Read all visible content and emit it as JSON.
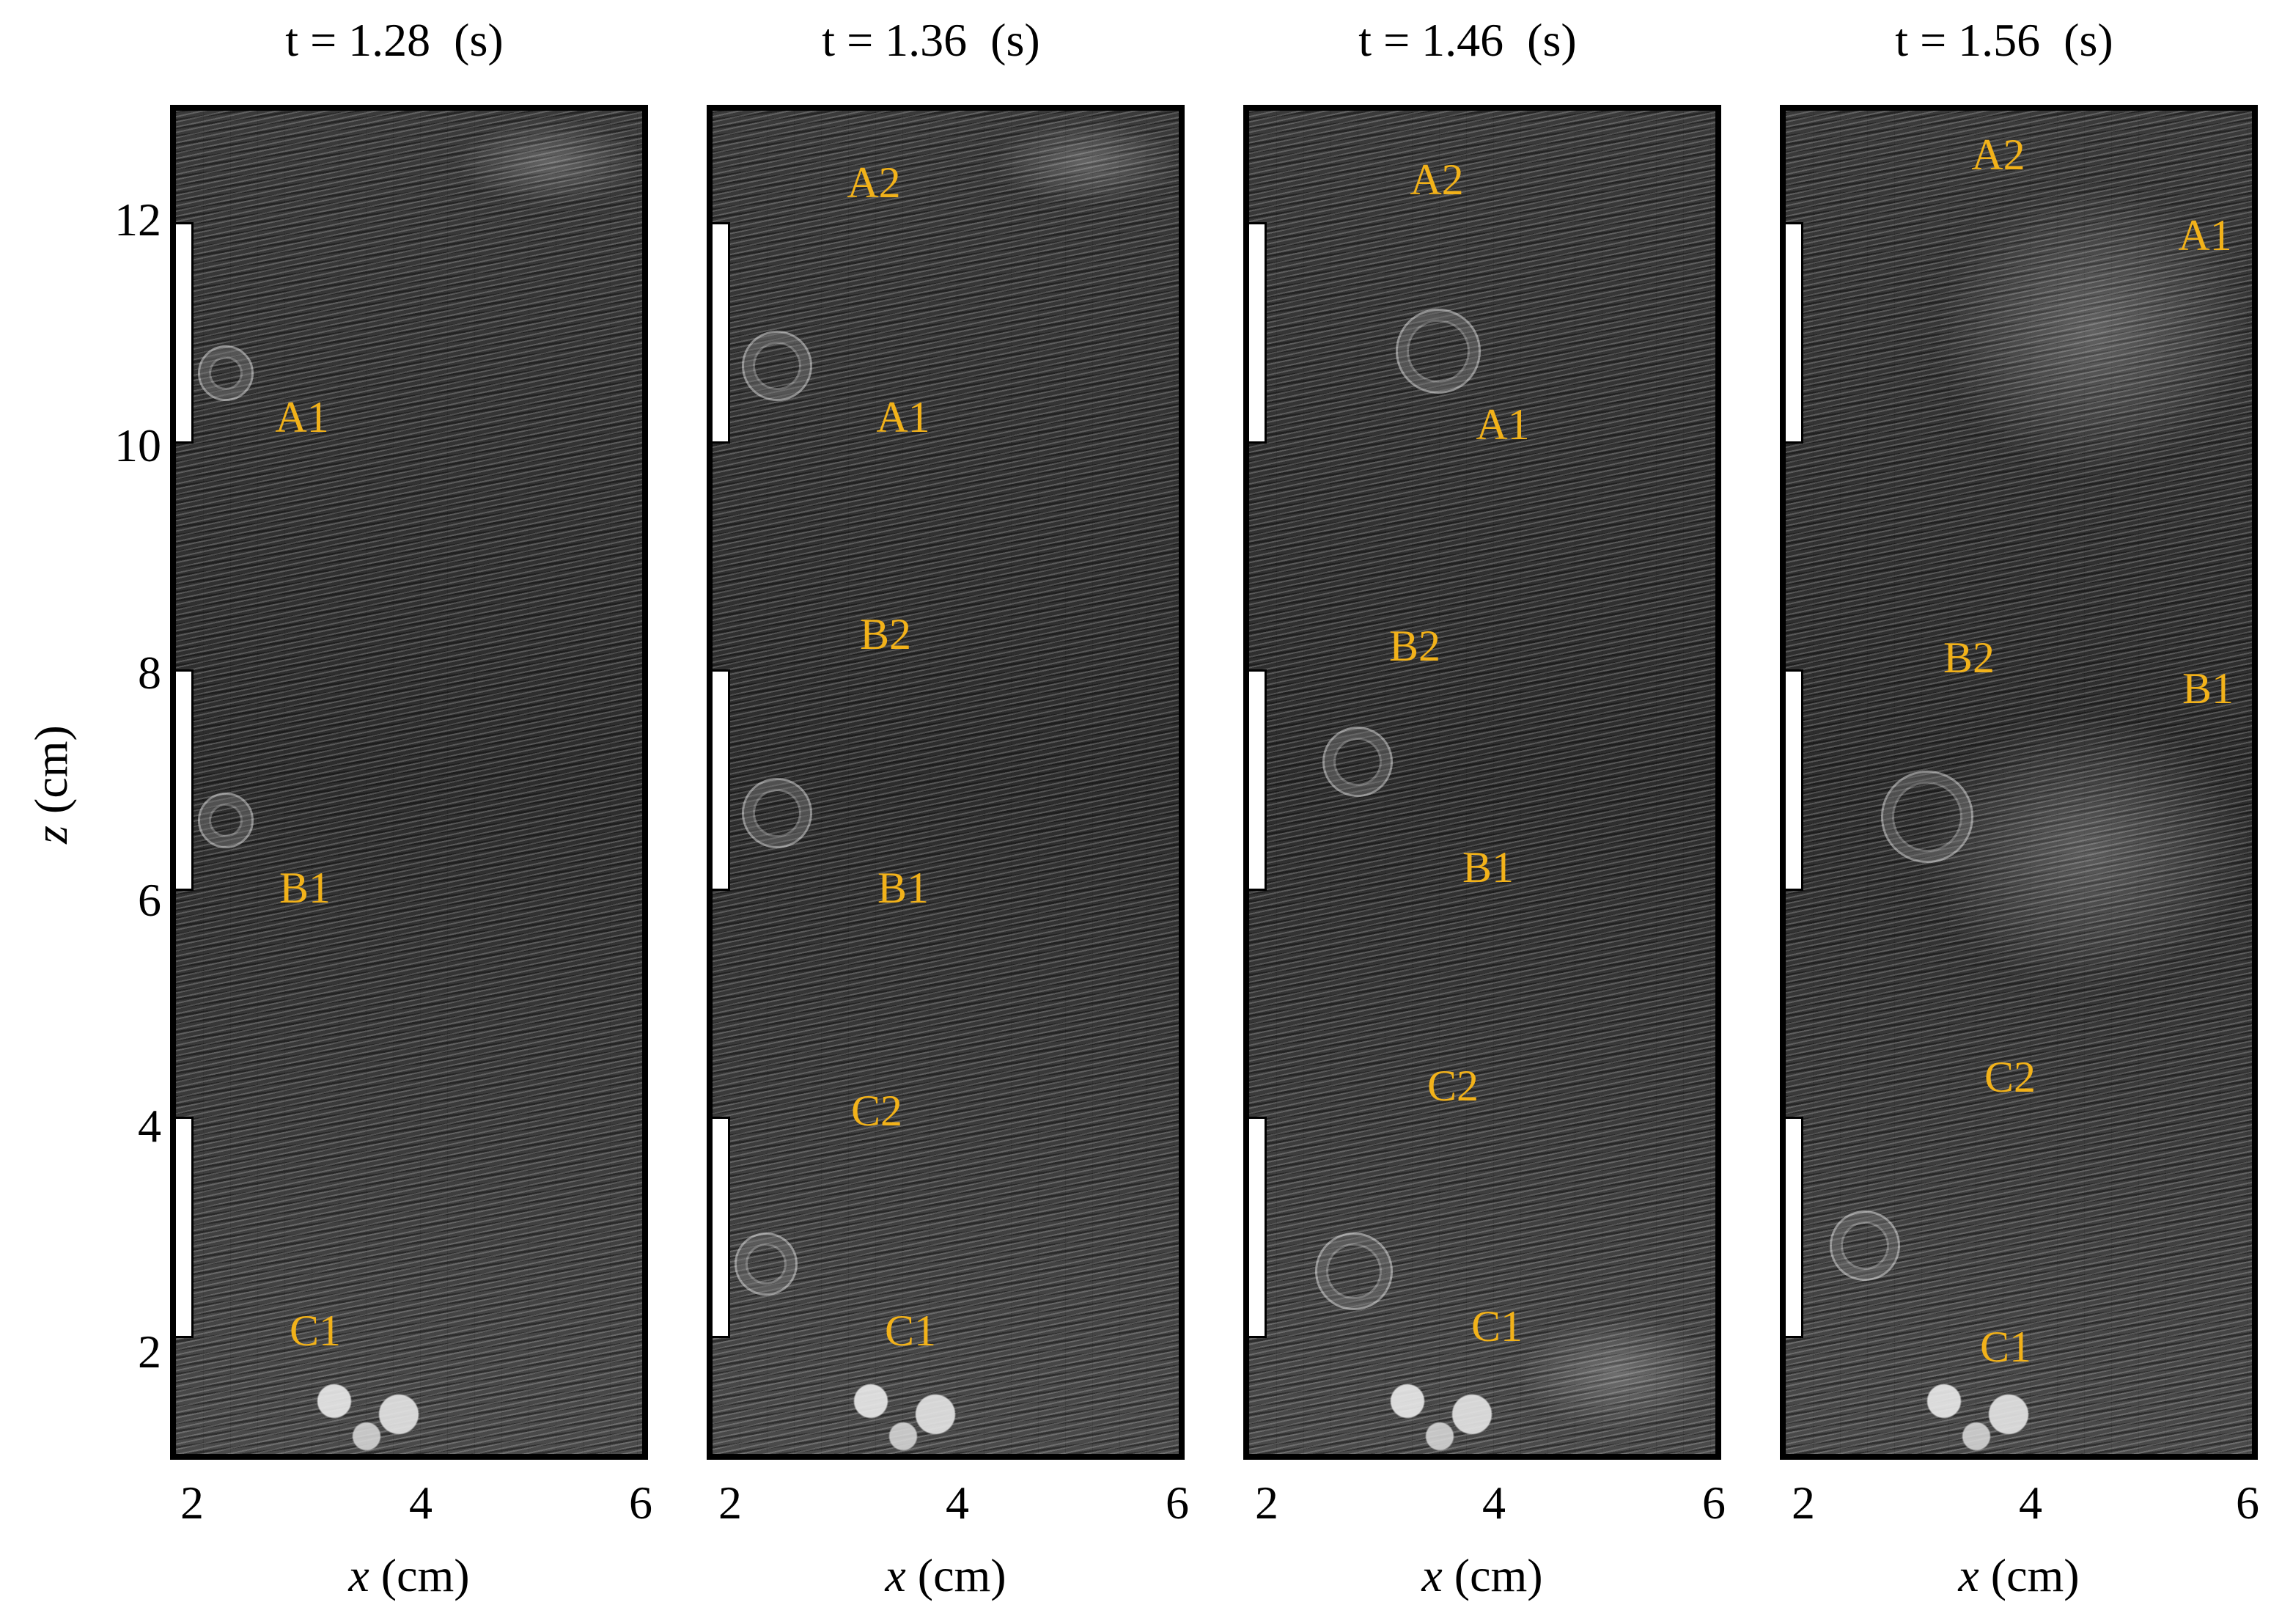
{
  "panels": [
    {
      "title": "t = 1.28  (s)",
      "labels": [
        "A1",
        "B1",
        "C1"
      ]
    },
    {
      "title": "t = 1.36  (s)",
      "labels": [
        "A2",
        "A1",
        "B2",
        "B1",
        "C2",
        "C1"
      ]
    },
    {
      "title": "t = 1.46  (s)",
      "labels": [
        "A2",
        "A1",
        "B2",
        "B1",
        "C2",
        "C1"
      ]
    },
    {
      "title": "t = 1.56  (s)",
      "labels": [
        "A2",
        "A1",
        "B2",
        "B1",
        "C2",
        "C1"
      ]
    }
  ],
  "axes": {
    "x_ticks": [
      "2",
      "4",
      "6"
    ],
    "y_ticks": [
      "12",
      "10",
      "8",
      "6",
      "4",
      "2"
    ],
    "x_label_var": "x",
    "x_label_unit": " (cm)",
    "y_label_var": "z",
    "y_label_unit": " (cm)"
  },
  "colors": {
    "label": "#f2b21a"
  }
}
